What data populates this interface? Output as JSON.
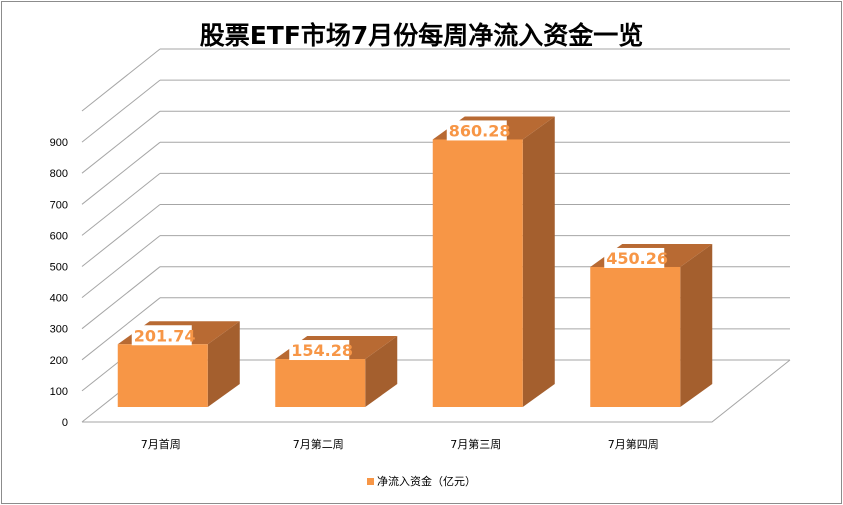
{
  "chart_data": {
    "type": "bar",
    "title": "股票ETF市场7月份每周净流入资金一览",
    "categories": [
      "7月首周",
      "7月第二周",
      "7月第三周",
      "7月第四周"
    ],
    "series": [
      {
        "name": "净流入资金（亿元）",
        "values": [
          201.74,
          154.28,
          860.28,
          450.26
        ]
      }
    ],
    "data_labels": [
      "201.74",
      "154.28",
      "860.28",
      "450.26"
    ],
    "yticks": [
      0,
      100,
      200,
      300,
      400,
      500,
      600,
      700,
      800,
      900
    ],
    "ylim": [
      0,
      1000
    ],
    "grid": true,
    "legend_position": "bottom",
    "colors": {
      "front": "#F79646",
      "side": "#A45F2E",
      "top": "#B86A33",
      "label": "#F79646",
      "grid": "#a6a6a6"
    }
  }
}
